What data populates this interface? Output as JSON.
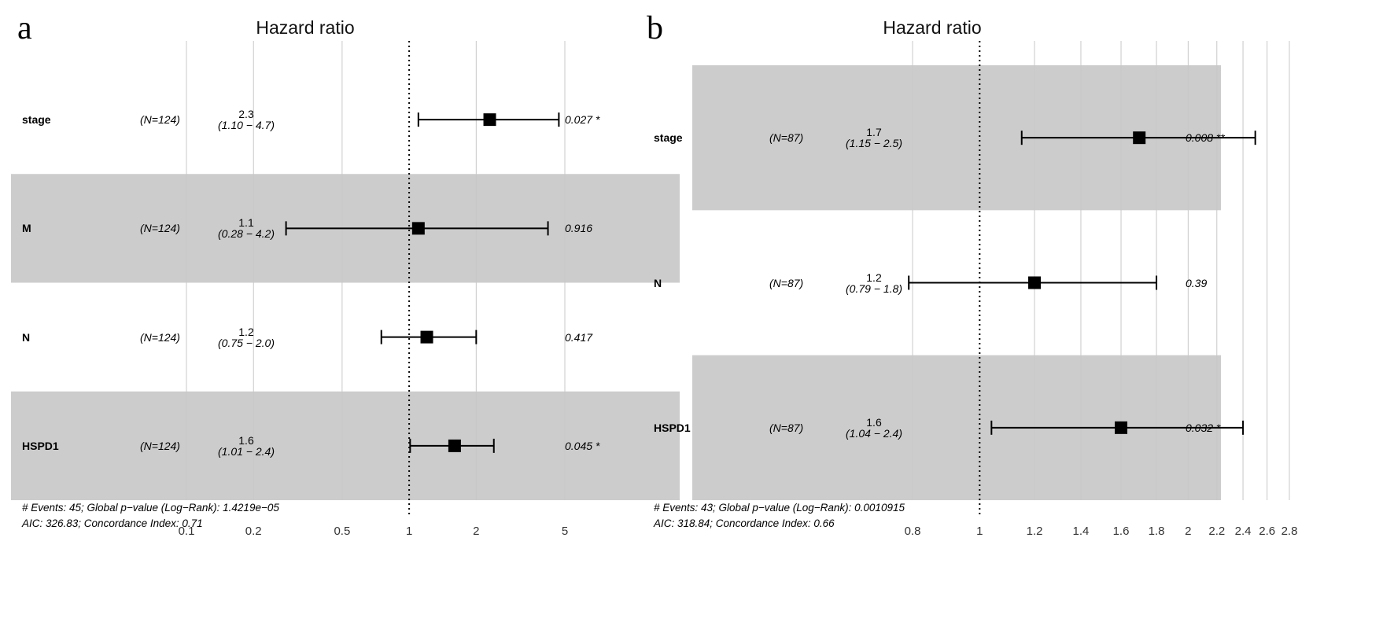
{
  "colors": {
    "band": "#cccccc",
    "grid": "#c8c8c8",
    "grid_on_band": "#bdbdbd",
    "mark": "#000000",
    "reference_line": "#000000"
  },
  "chart_data": [
    {
      "type": "forest",
      "panel_letter": "a",
      "title": "Hazard ratio",
      "x_scale": "log",
      "xlim": [
        0.06,
        7
      ],
      "reference_value": 1,
      "x_ticks": [
        0.1,
        0.2,
        0.5,
        1,
        2,
        5
      ],
      "x_tick_labels": [
        "0.1",
        "0.2",
        "0.5",
        "1",
        "2",
        "5"
      ],
      "grid": true,
      "rows": [
        {
          "variable": "stage",
          "n": "(N=124)",
          "hr": 2.3,
          "hr_text": "2.3",
          "ci_low": 1.1,
          "ci_high": 4.7,
          "ci_text": "(1.10 − 4.7)",
          "p_text": "0.027 *",
          "shaded": false
        },
        {
          "variable": "M",
          "n": "(N=124)",
          "hr": 1.1,
          "hr_text": "1.1",
          "ci_low": 0.28,
          "ci_high": 4.2,
          "ci_text": "(0.28 − 4.2)",
          "p_text": "0.916",
          "shaded": true
        },
        {
          "variable": "N",
          "n": "(N=124)",
          "hr": 1.2,
          "hr_text": "1.2",
          "ci_low": 0.75,
          "ci_high": 2.0,
          "ci_text": "(0.75 − 2.0)",
          "p_text": "0.417",
          "shaded": false
        },
        {
          "variable": "HSPD1",
          "n": "(N=124)",
          "hr": 1.6,
          "hr_text": "1.6",
          "ci_low": 1.01,
          "ci_high": 2.4,
          "ci_text": "(1.01 − 2.4)",
          "p_text": "0.045 *",
          "shaded": true
        }
      ],
      "footer": [
        "# Events: 45; Global p−value (Log−Rank): 1.4219e−05",
        "AIC: 326.83; Concordance Index: 0.71"
      ]
    },
    {
      "type": "forest",
      "panel_letter": "b",
      "title": "Hazard ratio",
      "x_scale": "log",
      "xlim": [
        0.72,
        2.95
      ],
      "reference_value": 1,
      "x_ticks": [
        0.8,
        1,
        1.2,
        1.4,
        1.6,
        1.8,
        2,
        2.2,
        2.4,
        2.6,
        2.8
      ],
      "x_tick_labels": [
        "0.8",
        "1",
        "1.2",
        "1.4",
        "1.6",
        "1.8",
        "2",
        "2.2",
        "2.4",
        "2.6",
        "2.8"
      ],
      "grid": true,
      "rows": [
        {
          "variable": "stage",
          "n": "(N=87)",
          "hr": 1.7,
          "hr_text": "1.7",
          "ci_low": 1.15,
          "ci_high": 2.5,
          "ci_text": "(1.15 − 2.5)",
          "p_text": "0.008 **",
          "shaded": true
        },
        {
          "variable": "N",
          "n": "(N=87)",
          "hr": 1.2,
          "hr_text": "1.2",
          "ci_low": 0.79,
          "ci_high": 1.8,
          "ci_text": "(0.79 − 1.8)",
          "p_text": "0.39",
          "shaded": false
        },
        {
          "variable": "HSPD1",
          "n": "(N=87)",
          "hr": 1.6,
          "hr_text": "1.6",
          "ci_low": 1.04,
          "ci_high": 2.4,
          "ci_text": "(1.04 − 2.4)",
          "p_text": "0.032 *",
          "shaded": true
        }
      ],
      "footer": [
        "# Events: 43; Global p−value (Log−Rank): 0.0010915",
        "AIC: 318.84; Concordance Index: 0.66"
      ]
    }
  ]
}
